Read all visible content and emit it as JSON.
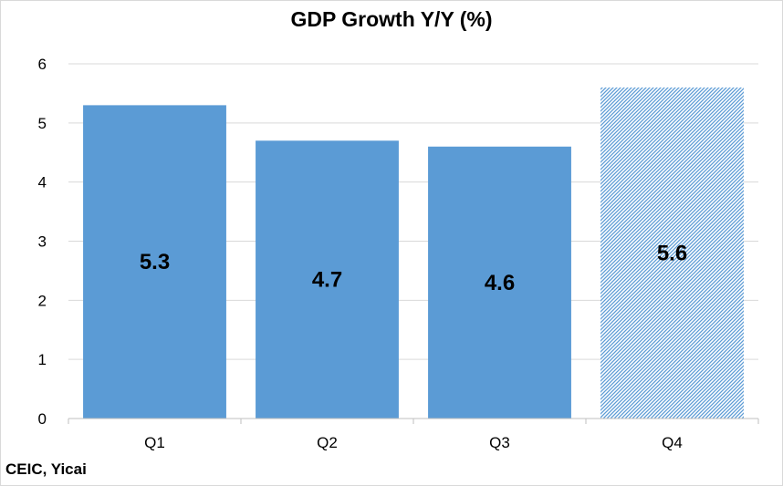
{
  "chart_data": {
    "type": "bar",
    "title": "GDP Growth Y/Y (%)",
    "categories": [
      "Q1",
      "Q2",
      "Q3",
      "Q4"
    ],
    "values": [
      5.3,
      4.7,
      4.6,
      5.6
    ],
    "data_labels": [
      "5.3",
      "4.7",
      "4.6",
      "5.6"
    ],
    "bar_styles": [
      "solid",
      "solid",
      "solid",
      "hatched"
    ],
    "ylim": [
      0,
      6
    ],
    "yticks": [
      0,
      1,
      2,
      3,
      4,
      5,
      6
    ],
    "grid": true,
    "legend": "none",
    "colors": {
      "bar": "#5b9bd5",
      "grid": "#d9d9d9",
      "axis": "#bfbfbf"
    }
  },
  "source": "CEIC, Yicai"
}
